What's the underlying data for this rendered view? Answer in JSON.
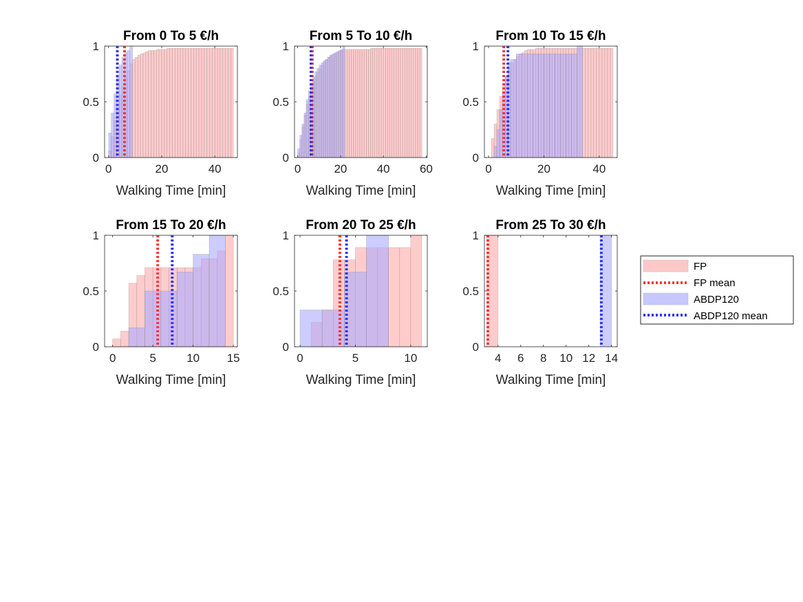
{
  "chart_data": [
    {
      "type": "histogram-cdf",
      "title": "From 0 To 5 €/h",
      "xlabel": "Walking Time [min]",
      "xlim": [
        -1.5,
        48.5
      ],
      "ylim": [
        0,
        1
      ],
      "xticks": [
        0,
        20,
        40
      ],
      "yticks": [
        0,
        0.5,
        1
      ],
      "ytick_labels": [
        "0",
        "0.5",
        "1"
      ],
      "series": [
        {
          "name": "FP",
          "edges": [
            0,
            1,
            2,
            3,
            4,
            5,
            6,
            7,
            8,
            9,
            10,
            11,
            12,
            13,
            14,
            15,
            16,
            17,
            18,
            19,
            20,
            21,
            22,
            23,
            24,
            25,
            26,
            27,
            28,
            29,
            30,
            31,
            32,
            33,
            34,
            35,
            36,
            37,
            38,
            39,
            40,
            41,
            42,
            43,
            44,
            45,
            46,
            47
          ],
          "values": [
            0.06,
            0.19,
            0.33,
            0.45,
            0.56,
            0.64,
            0.72,
            0.78,
            0.84,
            0.88,
            0.9,
            0.92,
            0.93,
            0.94,
            0.95,
            0.96,
            0.96,
            0.96,
            0.97,
            0.97,
            0.97,
            0.97,
            0.98,
            0.98,
            0.98,
            0.98,
            0.98,
            0.98,
            0.98,
            0.98,
            0.98,
            0.98,
            0.98,
            0.98,
            0.98,
            0.98,
            0.98,
            0.98,
            0.98,
            0.98,
            0.98,
            0.98,
            0.98,
            0.98,
            0.98,
            0.98,
            0.98
          ],
          "mean": 6
        },
        {
          "name": "ABDP120",
          "edges": [
            0,
            1,
            2,
            3,
            4,
            5,
            6,
            7,
            8,
            9
          ],
          "values": [
            0.22,
            0.4,
            0.57,
            0.72,
            0.83,
            0.9,
            0.94,
            0.96,
            1.0
          ],
          "mean": 3.3
        }
      ]
    },
    {
      "type": "histogram-cdf",
      "title": "From 5 To 10 €/h",
      "xlabel": "Walking Time [min]",
      "xlim": [
        -1.5,
        60.5
      ],
      "ylim": [
        0,
        1
      ],
      "xticks": [
        0,
        20,
        40,
        60
      ],
      "yticks": [
        0,
        0.5,
        1
      ],
      "ytick_labels": [
        "0",
        "0.5",
        "1"
      ],
      "series": [
        {
          "name": "FP",
          "edges": [
            0,
            1,
            2,
            3,
            4,
            5,
            6,
            7,
            8,
            9,
            10,
            11,
            12,
            13,
            14,
            15,
            16,
            17,
            18,
            19,
            20,
            21,
            22,
            23,
            24,
            25,
            26,
            27,
            28,
            29,
            30,
            31,
            32,
            33,
            34,
            35,
            36,
            37,
            38,
            39,
            40,
            41,
            42,
            43,
            44,
            45,
            46,
            47,
            48,
            49,
            50,
            51,
            52,
            53,
            54,
            55,
            56,
            57,
            58
          ],
          "values": [
            0.04,
            0.16,
            0.28,
            0.38,
            0.48,
            0.55,
            0.62,
            0.68,
            0.73,
            0.77,
            0.8,
            0.83,
            0.86,
            0.88,
            0.9,
            0.91,
            0.92,
            0.93,
            0.94,
            0.95,
            0.96,
            0.97,
            0.97,
            0.97,
            0.97,
            0.97,
            0.97,
            0.97,
            0.97,
            0.97,
            0.97,
            0.97,
            0.97,
            0.97,
            0.98,
            0.98,
            0.98,
            0.98,
            0.98,
            0.98,
            0.98,
            0.98,
            0.98,
            0.98,
            0.98,
            0.98,
            0.98,
            0.98,
            0.98,
            0.98,
            0.98,
            0.98,
            0.98,
            0.98,
            0.98,
            0.98,
            0.98,
            0.98
          ],
          "mean": 6.8
        },
        {
          "name": "ABDP120",
          "edges": [
            0,
            1,
            2,
            3,
            4,
            5,
            6,
            7,
            8,
            9,
            10,
            11,
            12,
            13,
            14,
            15,
            16,
            17,
            18,
            19,
            20,
            21,
            22
          ],
          "values": [
            0.08,
            0.2,
            0.3,
            0.4,
            0.52,
            0.6,
            0.67,
            0.72,
            0.77,
            0.8,
            0.83,
            0.85,
            0.87,
            0.88,
            0.9,
            0.92,
            0.93,
            0.94,
            0.95,
            0.96,
            0.97,
            1.0
          ],
          "mean": 6.2
        }
      ]
    },
    {
      "type": "histogram-cdf",
      "title": "From 10 To 15 €/h",
      "xlabel": "Walking Time [min]",
      "xlim": [
        -1.5,
        46.5
      ],
      "ylim": [
        0,
        1
      ],
      "xticks": [
        0,
        20,
        40
      ],
      "yticks": [
        0,
        0.5,
        1
      ],
      "ytick_labels": [
        "0",
        "0.5",
        "1"
      ],
      "series": [
        {
          "name": "FP",
          "edges": [
            1,
            2,
            3,
            4,
            5,
            6,
            7,
            8,
            9,
            10,
            11,
            12,
            13,
            14,
            15,
            16,
            17,
            18,
            19,
            20,
            21,
            22,
            23,
            24,
            25,
            26,
            27,
            28,
            29,
            30,
            31,
            32,
            33,
            34,
            35,
            36,
            37,
            38,
            39,
            40,
            41,
            42,
            43,
            44,
            45
          ],
          "values": [
            0.17,
            0.3,
            0.43,
            0.55,
            0.65,
            0.73,
            0.8,
            0.85,
            0.88,
            0.91,
            0.93,
            0.94,
            0.96,
            0.97,
            0.97,
            0.97,
            0.98,
            0.98,
            0.98,
            0.98,
            0.98,
            0.98,
            0.98,
            0.98,
            0.98,
            0.98,
            0.98,
            0.98,
            0.98,
            0.98,
            0.98,
            0.98,
            0.98,
            0.98,
            0.98,
            0.98,
            0.98,
            0.98,
            0.98,
            0.98,
            0.98,
            0.98,
            0.98,
            0.98
          ],
          "mean": 5.5
        },
        {
          "name": "ABDP120",
          "edges": [
            2,
            3,
            4,
            5,
            6,
            7,
            8,
            10,
            12,
            14,
            16,
            18,
            20,
            22,
            24,
            26,
            28,
            30,
            32,
            34
          ],
          "values": [
            0.1,
            0.25,
            0.43,
            0.58,
            0.73,
            0.86,
            0.88,
            0.93,
            0.93,
            0.93,
            0.93,
            0.93,
            0.93,
            0.93,
            0.93,
            0.93,
            0.93,
            0.93,
            1.0
          ],
          "mean": 7.0
        }
      ]
    },
    {
      "type": "histogram-cdf",
      "title": "From 15 To 20 €/h",
      "xlabel": "Walking Time [min]",
      "xlim": [
        -1,
        15.5
      ],
      "ylim": [
        0,
        1
      ],
      "xticks": [
        0,
        5,
        10,
        15
      ],
      "yticks": [
        0,
        0.5,
        1
      ],
      "ytick_labels": [
        "0",
        "0.5",
        "1"
      ],
      "series": [
        {
          "name": "FP",
          "edges": [
            0,
            1,
            2,
            3,
            4,
            5,
            6,
            7,
            8,
            9,
            10,
            11,
            12,
            13,
            14,
            15
          ],
          "values": [
            0.07,
            0.14,
            0.57,
            0.64,
            0.71,
            0.71,
            0.71,
            0.71,
            0.71,
            0.71,
            0.71,
            0.79,
            0.79,
            0.86,
            1.0
          ],
          "mean": 5.6
        },
        {
          "name": "ABDP120",
          "edges": [
            2,
            4,
            6,
            8,
            10,
            12,
            14
          ],
          "values": [
            0.17,
            0.5,
            0.5,
            0.67,
            0.83,
            1.0
          ],
          "mean": 7.4
        }
      ]
    },
    {
      "type": "histogram-cdf",
      "title": "From 20 To 25 €/h",
      "xlabel": "Walking Time [min]",
      "xlim": [
        -0.5,
        11.5
      ],
      "ylim": [
        0,
        1
      ],
      "xticks": [
        0,
        5,
        10
      ],
      "yticks": [
        0,
        0.5,
        1
      ],
      "ytick_labels": [
        "0",
        "0.5",
        "1"
      ],
      "series": [
        {
          "name": "FP",
          "edges": [
            1,
            2,
            3,
            4,
            5,
            6,
            7,
            8,
            9,
            10,
            11
          ],
          "values": [
            0.22,
            0.33,
            0.78,
            0.78,
            0.89,
            0.89,
            0.89,
            0.89,
            0.89,
            1.0
          ],
          "mean": 3.6
        },
        {
          "name": "ABDP120",
          "edges": [
            0,
            2,
            4,
            6,
            8
          ],
          "values": [
            0.33,
            0.33,
            0.67,
            1.0
          ],
          "mean": 4.2
        }
      ]
    },
    {
      "type": "histogram-cdf",
      "title": "From 25 To 30 €/h",
      "xlabel": "Walking Time [min]",
      "xlim": [
        2.8,
        14.5
      ],
      "ylim": [
        0,
        1
      ],
      "xticks": [
        4,
        6,
        8,
        10,
        12,
        14
      ],
      "yticks": [
        0,
        0.5,
        1
      ],
      "ytick_labels": [
        "0",
        "0.5",
        "1"
      ],
      "series": [
        {
          "name": "FP",
          "edges": [
            3,
            4
          ],
          "values": [
            1.0
          ],
          "mean": 3.1
        },
        {
          "name": "ABDP120",
          "edges": [
            13,
            14
          ],
          "values": [
            1.0
          ],
          "mean": 13.1
        }
      ]
    }
  ],
  "legend": {
    "items": [
      {
        "label": "FP",
        "kind": "patch",
        "color": "#ffaaaa"
      },
      {
        "label": "FP mean",
        "kind": "dotted",
        "color": "#ff3333"
      },
      {
        "label": "ABDP120",
        "kind": "patch",
        "color": "#aaaaff"
      },
      {
        "label": "ABDP120 mean",
        "kind": "dotted",
        "color": "#3333ff"
      }
    ]
  },
  "colors": {
    "fp_fill": "#ffaaaa",
    "fp_mean": "#ff3333",
    "abdp_fill": "#aaaaff",
    "abdp_mean": "#3333ff"
  }
}
